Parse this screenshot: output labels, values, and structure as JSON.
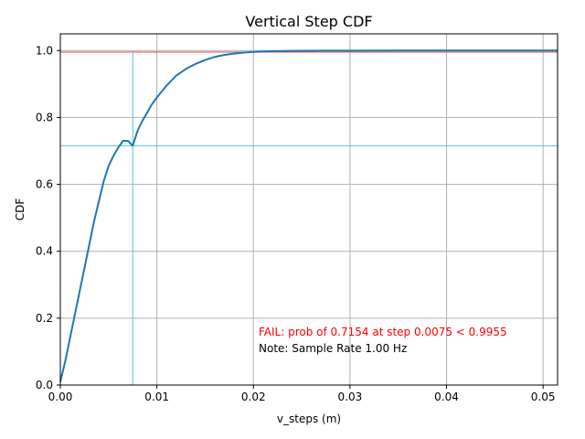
{
  "chart_data": {
    "type": "line",
    "title": "Vertical Step CDF",
    "xlabel": "v_steps (m)",
    "ylabel": "CDF",
    "xlim": [
      0,
      0.0515
    ],
    "ylim": [
      0,
      1.05
    ],
    "x_ticks": [
      0.0,
      0.01,
      0.02,
      0.03,
      0.04,
      0.05
    ],
    "x_tick_labels": [
      "0.00",
      "0.01",
      "0.02",
      "0.03",
      "0.04",
      "0.05"
    ],
    "y_ticks": [
      0.0,
      0.2,
      0.4,
      0.6,
      0.8,
      1.0
    ],
    "y_tick_labels": [
      "0.0",
      "0.2",
      "0.4",
      "0.6",
      "0.8",
      "1.0"
    ],
    "grid": true,
    "series": [
      {
        "color": "#1f77b4",
        "x": [
          0.0,
          0.0005,
          0.001,
          0.0015,
          0.002,
          0.0025,
          0.003,
          0.0035,
          0.004,
          0.0045,
          0.005,
          0.0055,
          0.006,
          0.0065,
          0.007,
          0.0075,
          0.008,
          0.0085,
          0.009,
          0.0095,
          0.01,
          0.011,
          0.012,
          0.013,
          0.014,
          0.015,
          0.016,
          0.017,
          0.018,
          0.019,
          0.02,
          0.021,
          0.022,
          0.023,
          0.024,
          0.025,
          0.026,
          0.027,
          0.028,
          0.03,
          0.035,
          0.04,
          0.045,
          0.05,
          0.0515
        ],
        "y": [
          0.01,
          0.07,
          0.14,
          0.21,
          0.28,
          0.35,
          0.42,
          0.49,
          0.55,
          0.61,
          0.655,
          0.685,
          0.71,
          0.73,
          0.73,
          0.7154,
          0.76,
          0.79,
          0.815,
          0.84,
          0.86,
          0.895,
          0.925,
          0.945,
          0.96,
          0.972,
          0.981,
          0.987,
          0.991,
          0.994,
          0.996,
          0.997,
          0.998,
          0.9985,
          0.999,
          0.9993,
          0.9995,
          0.9997,
          0.9998,
          0.9999,
          1.0,
          1.0,
          1.0,
          1.0,
          1.0
        ]
      }
    ],
    "reference_lines": {
      "threshold_y": 0.9955,
      "threshold_color": "#e05a5a",
      "step_x": 0.0075,
      "prob_y": 0.7154,
      "marker_color": "#5bc0de"
    },
    "annotations": [
      {
        "text": "FAIL: prob of 0.7154 at step 0.0075 < 0.9955",
        "color": "#ff0000"
      },
      {
        "text": "Note: Sample Rate 1.00 Hz",
        "color": "#000000"
      }
    ]
  }
}
